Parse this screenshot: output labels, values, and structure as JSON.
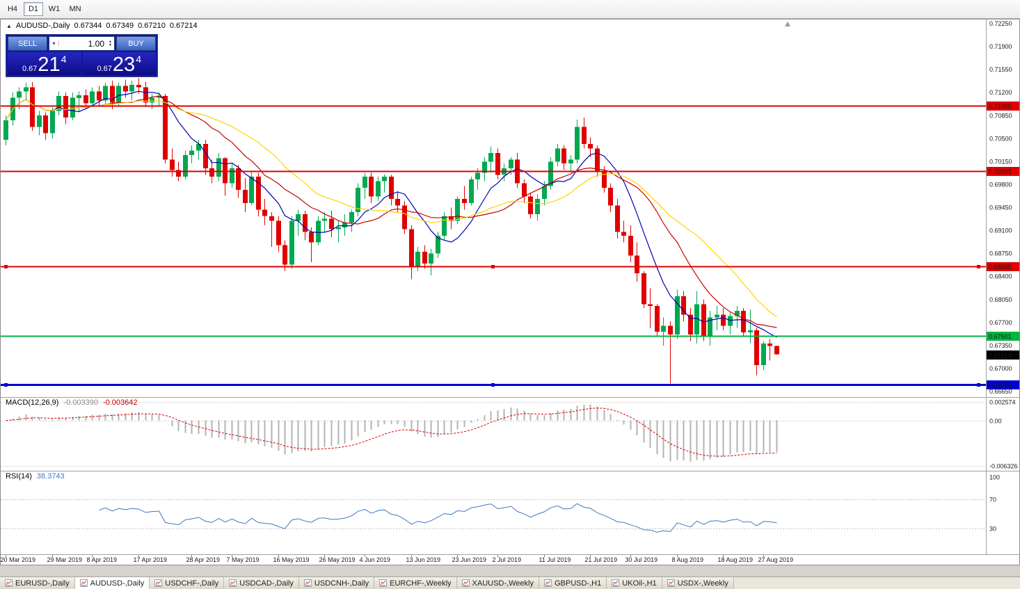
{
  "toolbar": {
    "timeframes": [
      {
        "label": "H4",
        "active": false
      },
      {
        "label": "D1",
        "active": true
      },
      {
        "label": "W1",
        "active": false
      },
      {
        "label": "MN",
        "active": false
      }
    ]
  },
  "header": {
    "toggle_icon": "▲",
    "symbol": "AUDUSD-,Daily",
    "open": "0.67344",
    "high": "0.67349",
    "low": "0.67210",
    "close": "0.67214"
  },
  "one_click": {
    "sell_label": "SELL",
    "buy_label": "BUY",
    "volume": "1.00",
    "bid": {
      "prefix": "0.67",
      "big": "21",
      "pip": "4"
    },
    "ask": {
      "prefix": "0.67",
      "big": "23",
      "pip": "4"
    }
  },
  "price_tag": "0.67214",
  "macd": {
    "label": "MACD(12,26,9)",
    "main_value": "-0.003390",
    "signal_value": "-0.003642",
    "fast": 12,
    "slow": 26,
    "signal": 9,
    "axis_ticks": [
      "0.002574",
      "0.00",
      "-0.006326"
    ]
  },
  "rsi": {
    "label": "RSI(14)",
    "value": "38.3743",
    "period": 14,
    "axis_ticks": [
      "100",
      "70",
      "30"
    ],
    "level_lines": [
      70,
      30
    ]
  },
  "colors": {
    "bull": "#00a84f",
    "bear": "#e00000",
    "macd_hist": "#b3b3b3",
    "macd_signal": "#d00000",
    "rsi": "#3a78c3",
    "price_tag_bg": "#000000"
  },
  "bottom_tabs": [
    {
      "label": "EURUSD-,Daily",
      "active": false
    },
    {
      "label": "AUDUSD-,Daily",
      "active": true
    },
    {
      "label": "USDCHF-,Daily",
      "active": false
    },
    {
      "label": "USDCAD-,Daily",
      "active": false
    },
    {
      "label": "USDCNH-,Daily",
      "active": false
    },
    {
      "label": "EURCHF-,Weekly",
      "active": false
    },
    {
      "label": "XAUUSD-,Weekly",
      "active": false
    },
    {
      "label": "GBPUSD-,H1",
      "active": false
    },
    {
      "label": "UKOil-,H1",
      "active": false
    },
    {
      "label": "USDX-,Weekly",
      "active": false
    }
  ],
  "chart_data": {
    "type": "candlestick",
    "symbol": "AUDUSD-",
    "timeframe": "Daily",
    "y_axis_ticks": [
      "0.72250",
      "0.71900",
      "0.71550",
      "0.71200",
      "0.70850",
      "0.70500",
      "0.70150",
      "0.69800",
      "0.69450",
      "0.69100",
      "0.68750",
      "0.68400",
      "0.68050",
      "0.67700",
      "0.67350",
      "0.67000",
      "0.66650"
    ],
    "x_labels": [
      "20 Mar 2019",
      "29 Mar 2019",
      "8 Apr 2019",
      "17 Apr 2019",
      "28 Apr 2019",
      "7 May 2019",
      "16 May 2019",
      "26 May 2019",
      "4 Jun 2019",
      "13 Jun 2019",
      "23 Jun 2019",
      "2 Jul 2019",
      "11 Jul 2019",
      "21 Jul 2019",
      "30 Jul 2019",
      "8 Aug 2019",
      "18 Aug 2019",
      "27 Aug 2019"
    ],
    "x_label_indices": [
      0,
      7,
      13,
      20,
      28,
      34,
      41,
      48,
      54,
      61,
      68,
      74,
      81,
      88,
      94,
      101,
      108,
      114
    ],
    "horizontal_levels": [
      {
        "value": "0.71005",
        "color": "#e00000",
        "width": 2,
        "selected": false
      },
      {
        "value": "0.70002",
        "color": "#e00000",
        "width": 2,
        "selected": false
      },
      {
        "value": "0.68555",
        "color": "#e00000",
        "width": 2,
        "selected": true
      },
      {
        "value": "0.67501",
        "color": "#00b43c",
        "width": 2,
        "selected": false
      },
      {
        "value": "0.66754",
        "color": "#0000d2",
        "width": 3,
        "selected": true
      }
    ],
    "moving_averages": [
      {
        "period": 8,
        "color": "#0000b0"
      },
      {
        "period": 16,
        "color": "#c80000"
      },
      {
        "period": 24,
        "color": "#ffd400"
      }
    ],
    "candles": [
      [
        0.7048,
        0.7085,
        0.704,
        0.7078
      ],
      [
        0.7078,
        0.712,
        0.707,
        0.7112
      ],
      [
        0.7112,
        0.7128,
        0.7095,
        0.7122
      ],
      [
        0.7122,
        0.7135,
        0.7108,
        0.7128
      ],
      [
        0.7128,
        0.7136,
        0.7062,
        0.7068
      ],
      [
        0.7068,
        0.7092,
        0.7055,
        0.7085
      ],
      [
        0.7085,
        0.709,
        0.7048,
        0.7058
      ],
      [
        0.7058,
        0.7098,
        0.705,
        0.7092
      ],
      [
        0.7092,
        0.7122,
        0.7085,
        0.7115
      ],
      [
        0.7115,
        0.712,
        0.7072,
        0.7082
      ],
      [
        0.7082,
        0.712,
        0.7078,
        0.7112
      ],
      [
        0.7112,
        0.7122,
        0.709,
        0.7116
      ],
      [
        0.7116,
        0.7125,
        0.7095,
        0.7104
      ],
      [
        0.7104,
        0.7128,
        0.7098,
        0.7122
      ],
      [
        0.7122,
        0.713,
        0.71,
        0.7108
      ],
      [
        0.7108,
        0.7135,
        0.7102,
        0.713
      ],
      [
        0.713,
        0.7138,
        0.7095,
        0.7105
      ],
      [
        0.7105,
        0.7135,
        0.71,
        0.713
      ],
      [
        0.713,
        0.714,
        0.7112,
        0.7122
      ],
      [
        0.7122,
        0.7138,
        0.7108,
        0.7132
      ],
      [
        0.7132,
        0.7142,
        0.7118,
        0.7128
      ],
      [
        0.7128,
        0.7136,
        0.7098,
        0.7105
      ],
      [
        0.7105,
        0.7118,
        0.7095,
        0.7112
      ],
      [
        0.7112,
        0.712,
        0.71,
        0.7115
      ],
      [
        0.7115,
        0.7118,
        0.7012,
        0.7018
      ],
      [
        0.7018,
        0.7035,
        0.6992,
        0.7002
      ],
      [
        0.7002,
        0.7015,
        0.6985,
        0.6992
      ],
      [
        0.6992,
        0.7032,
        0.6988,
        0.7025
      ],
      [
        0.7025,
        0.704,
        0.7012,
        0.7032
      ],
      [
        0.7032,
        0.7048,
        0.7018,
        0.7042
      ],
      [
        0.7042,
        0.7048,
        0.6995,
        0.7005
      ],
      [
        0.7005,
        0.7018,
        0.6982,
        0.6992
      ],
      [
        0.6992,
        0.7028,
        0.6985,
        0.702
      ],
      [
        0.702,
        0.7022,
        0.6963,
        0.6982
      ],
      [
        0.6982,
        0.7012,
        0.6975,
        0.7005
      ],
      [
        0.7005,
        0.701,
        0.696,
        0.6972
      ],
      [
        0.6972,
        0.699,
        0.6938,
        0.6952
      ],
      [
        0.6952,
        0.7,
        0.6948,
        0.6992
      ],
      [
        0.6992,
        0.6998,
        0.6932,
        0.6942
      ],
      [
        0.6942,
        0.6958,
        0.6918,
        0.6932
      ],
      [
        0.6932,
        0.6938,
        0.6885,
        0.6925
      ],
      [
        0.6925,
        0.6932,
        0.6878,
        0.6888
      ],
      [
        0.6888,
        0.6895,
        0.6848,
        0.6858
      ],
      [
        0.6858,
        0.6932,
        0.6852,
        0.6925
      ],
      [
        0.6925,
        0.6942,
        0.6902,
        0.6935
      ],
      [
        0.6935,
        0.694,
        0.6895,
        0.6908
      ],
      [
        0.6908,
        0.6915,
        0.6862,
        0.6892
      ],
      [
        0.6892,
        0.6932,
        0.6888,
        0.6925
      ],
      [
        0.6925,
        0.6938,
        0.6908,
        0.6928
      ],
      [
        0.6928,
        0.694,
        0.69,
        0.6912
      ],
      [
        0.6912,
        0.6925,
        0.6892,
        0.6915
      ],
      [
        0.6915,
        0.6935,
        0.6902,
        0.6922
      ],
      [
        0.6922,
        0.6942,
        0.6908,
        0.6938
      ],
      [
        0.6938,
        0.6982,
        0.6932,
        0.6975
      ],
      [
        0.6975,
        0.6998,
        0.6958,
        0.6992
      ],
      [
        0.6992,
        0.6998,
        0.6952,
        0.6962
      ],
      [
        0.6962,
        0.6992,
        0.6955,
        0.6985
      ],
      [
        0.6985,
        0.6996,
        0.6968,
        0.6992
      ],
      [
        0.6992,
        0.6995,
        0.6948,
        0.6958
      ],
      [
        0.6958,
        0.697,
        0.6938,
        0.6948
      ],
      [
        0.6948,
        0.6955,
        0.6905,
        0.6912
      ],
      [
        0.6912,
        0.6918,
        0.6836,
        0.6856
      ],
      [
        0.6856,
        0.6885,
        0.6848,
        0.6878
      ],
      [
        0.6878,
        0.6888,
        0.6852,
        0.686
      ],
      [
        0.686,
        0.6882,
        0.6842,
        0.6875
      ],
      [
        0.6875,
        0.6908,
        0.6868,
        0.6902
      ],
      [
        0.6902,
        0.6938,
        0.6895,
        0.6932
      ],
      [
        0.6932,
        0.6945,
        0.6912,
        0.6925
      ],
      [
        0.6925,
        0.6962,
        0.692,
        0.6958
      ],
      [
        0.6958,
        0.6978,
        0.6942,
        0.6952
      ],
      [
        0.6952,
        0.6992,
        0.6948,
        0.6988
      ],
      [
        0.6988,
        0.7005,
        0.6972,
        0.6998
      ],
      [
        0.6998,
        0.7022,
        0.6985,
        0.7015
      ],
      [
        0.7015,
        0.7038,
        0.6998,
        0.7028
      ],
      [
        0.7028,
        0.7035,
        0.6988,
        0.6995
      ],
      [
        0.6995,
        0.7012,
        0.6985,
        0.7005
      ],
      [
        0.7005,
        0.7022,
        0.6995,
        0.7018
      ],
      [
        0.7018,
        0.7028,
        0.6975,
        0.6982
      ],
      [
        0.6982,
        0.6988,
        0.6952,
        0.6962
      ],
      [
        0.6962,
        0.6968,
        0.6928,
        0.6935
      ],
      [
        0.6935,
        0.6965,
        0.6925,
        0.6958
      ],
      [
        0.6958,
        0.6985,
        0.6948,
        0.6978
      ],
      [
        0.6978,
        0.7022,
        0.6972,
        0.7015
      ],
      [
        0.7015,
        0.7042,
        0.7008,
        0.7035
      ],
      [
        0.7035,
        0.704,
        0.7002,
        0.7012
      ],
      [
        0.7012,
        0.7025,
        0.6998,
        0.7018
      ],
      [
        0.7018,
        0.7079,
        0.7012,
        0.7068
      ],
      [
        0.7068,
        0.7082,
        0.7035,
        0.7042
      ],
      [
        0.7042,
        0.7052,
        0.7022,
        0.7035
      ],
      [
        0.7035,
        0.704,
        0.6992,
        0.7
      ],
      [
        0.7,
        0.7008,
        0.6968,
        0.6975
      ],
      [
        0.6975,
        0.6982,
        0.6938,
        0.6948
      ],
      [
        0.6948,
        0.6958,
        0.6898,
        0.6908
      ],
      [
        0.6908,
        0.6925,
        0.6892,
        0.6902
      ],
      [
        0.6902,
        0.6918,
        0.6862,
        0.6872
      ],
      [
        0.6872,
        0.6892,
        0.6832,
        0.6845
      ],
      [
        0.6845,
        0.6848,
        0.6792,
        0.6798
      ],
      [
        0.6798,
        0.6822,
        0.6762,
        0.6795
      ],
      [
        0.6795,
        0.6798,
        0.6748,
        0.6756
      ],
      [
        0.6756,
        0.6778,
        0.6735,
        0.6765
      ],
      [
        0.6765,
        0.6772,
        0.6677,
        0.6752
      ],
      [
        0.6752,
        0.682,
        0.6745,
        0.681
      ],
      [
        0.681,
        0.6818,
        0.6772,
        0.6782
      ],
      [
        0.6782,
        0.6792,
        0.6742,
        0.6752
      ],
      [
        0.6752,
        0.6818,
        0.6738,
        0.6798
      ],
      [
        0.6798,
        0.6805,
        0.6742,
        0.675
      ],
      [
        0.675,
        0.6788,
        0.6735,
        0.6778
      ],
      [
        0.6778,
        0.6795,
        0.6758,
        0.6782
      ],
      [
        0.6782,
        0.6792,
        0.6758,
        0.6765
      ],
      [
        0.6765,
        0.6785,
        0.6752,
        0.678
      ],
      [
        0.678,
        0.6795,
        0.6762,
        0.6788
      ],
      [
        0.6788,
        0.6792,
        0.6748,
        0.6755
      ],
      [
        0.6755,
        0.679,
        0.6738,
        0.6758
      ],
      [
        0.6758,
        0.6762,
        0.669,
        0.6705
      ],
      [
        0.6705,
        0.6742,
        0.6698,
        0.6738
      ],
      [
        0.6738,
        0.6745,
        0.6712,
        0.67344
      ],
      [
        0.67344,
        0.67349,
        0.6721,
        0.67214
      ]
    ]
  }
}
